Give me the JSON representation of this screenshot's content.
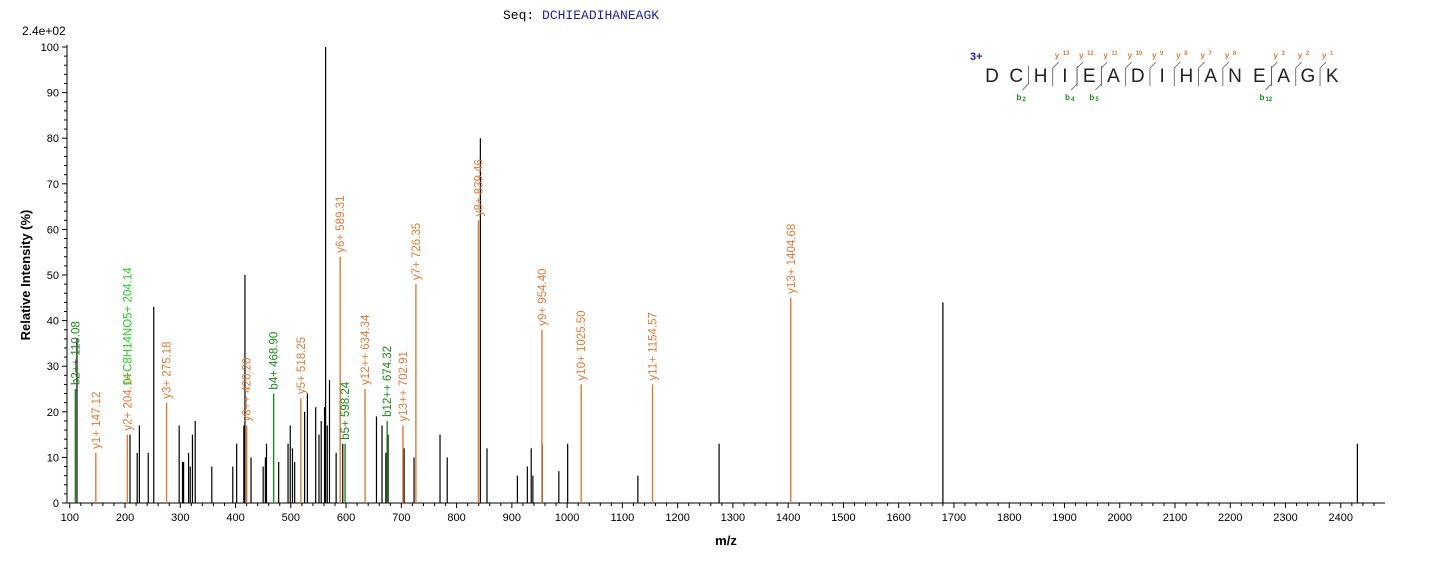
{
  "chart_data": {
    "type": "bar",
    "sequence_label": "Seq:",
    "sequence": "DCHIEADIHANEAGK",
    "charge_label": "3+",
    "scale_note": "2.4e+02",
    "xlabel": "m/z",
    "ylabel": "Relative   Intensity (%)",
    "xlim": [
      95,
      2480
    ],
    "ylim": [
      0,
      100
    ],
    "xticks": [
      100,
      200,
      300,
      400,
      500,
      600,
      700,
      800,
      900,
      1000,
      1100,
      1200,
      1300,
      1400,
      1500,
      1600,
      1700,
      1800,
      1900,
      2000,
      2100,
      2200,
      2300,
      2400
    ],
    "yticks": [
      0,
      10,
      20,
      30,
      40,
      50,
      60,
      70,
      80,
      90,
      100
    ],
    "colors": {
      "unmatched": "#000000",
      "y_ion": "#e07b39",
      "b_ion": "#1a8a1a",
      "b_label_bright": "#22cc22",
      "sequence": "#1f1fa0",
      "charge": "#1f1fa0"
    },
    "peaks": [
      {
        "mz": 113,
        "i": 36
      },
      {
        "mz": 209,
        "i": 15
      },
      {
        "mz": 222,
        "i": 11
      },
      {
        "mz": 226,
        "i": 17
      },
      {
        "mz": 242,
        "i": 11
      },
      {
        "mz": 252,
        "i": 43
      },
      {
        "mz": 298,
        "i": 17
      },
      {
        "mz": 304,
        "i": 9
      },
      {
        "mz": 306,
        "i": 9
      },
      {
        "mz": 315,
        "i": 11
      },
      {
        "mz": 318,
        "i": 8
      },
      {
        "mz": 322,
        "i": 15
      },
      {
        "mz": 327,
        "i": 18
      },
      {
        "mz": 357,
        "i": 8
      },
      {
        "mz": 395,
        "i": 8
      },
      {
        "mz": 402,
        "i": 13
      },
      {
        "mz": 415,
        "i": 17
      },
      {
        "mz": 417,
        "i": 50
      },
      {
        "mz": 428,
        "i": 10
      },
      {
        "mz": 450,
        "i": 8
      },
      {
        "mz": 454,
        "i": 10
      },
      {
        "mz": 456,
        "i": 13
      },
      {
        "mz": 478,
        "i": 9
      },
      {
        "mz": 495,
        "i": 13
      },
      {
        "mz": 499,
        "i": 17
      },
      {
        "mz": 503,
        "i": 12
      },
      {
        "mz": 507,
        "i": 9
      },
      {
        "mz": 525,
        "i": 20
      },
      {
        "mz": 530,
        "i": 24
      },
      {
        "mz": 545,
        "i": 21
      },
      {
        "mz": 551,
        "i": 15
      },
      {
        "mz": 555,
        "i": 18
      },
      {
        "mz": 561,
        "i": 21
      },
      {
        "mz": 563,
        "i": 100
      },
      {
        "mz": 566,
        "i": 17
      },
      {
        "mz": 570,
        "i": 27
      },
      {
        "mz": 582,
        "i": 11
      },
      {
        "mz": 594,
        "i": 13
      },
      {
        "mz": 655,
        "i": 19
      },
      {
        "mz": 665,
        "i": 17
      },
      {
        "mz": 672,
        "i": 11
      },
      {
        "mz": 676,
        "i": 15
      },
      {
        "mz": 705,
        "i": 12
      },
      {
        "mz": 723,
        "i": 10
      },
      {
        "mz": 770,
        "i": 15
      },
      {
        "mz": 783,
        "i": 10
      },
      {
        "mz": 843,
        "i": 80
      },
      {
        "mz": 855,
        "i": 12
      },
      {
        "mz": 910,
        "i": 6
      },
      {
        "mz": 928,
        "i": 8
      },
      {
        "mz": 935,
        "i": 12
      },
      {
        "mz": 938,
        "i": 6
      },
      {
        "mz": 955,
        "i": 13
      },
      {
        "mz": 985,
        "i": 7
      },
      {
        "mz": 1001,
        "i": 13
      },
      {
        "mz": 1128,
        "i": 6
      },
      {
        "mz": 1275,
        "i": 13
      },
      {
        "mz": 1680,
        "i": 44
      },
      {
        "mz": 2430,
        "i": 13
      }
    ],
    "annotated": [
      {
        "mz": 110.08,
        "i": 25,
        "label": "b2++ 110.08",
        "ion": "b"
      },
      {
        "mz": 147.12,
        "i": 11,
        "label": "y1+ 147.12",
        "ion": "y"
      },
      {
        "mz": 204.14,
        "i": 15,
        "label": "y2+ 204.14",
        "ion": "y"
      },
      {
        "mz": 204.14,
        "i": 25,
        "label": "0+C8H14NO5+ 204.14",
        "ion": "b_bright"
      },
      {
        "mz": 275.18,
        "i": 22,
        "label": "y3+ 275.18",
        "ion": "y"
      },
      {
        "mz": 420.2,
        "i": 17,
        "label": "y8++ 420.20",
        "ion": "y"
      },
      {
        "mz": 468.9,
        "i": 24,
        "label": "b4+ 468.90",
        "ion": "b"
      },
      {
        "mz": 518.25,
        "i": 23,
        "label": "y5+ 518.25",
        "ion": "y"
      },
      {
        "mz": 589.31,
        "i": 54,
        "label": "y6+ 589.31",
        "ion": "y"
      },
      {
        "mz": 598.24,
        "i": 13,
        "label": "b5+ 598.24",
        "ion": "b"
      },
      {
        "mz": 634.34,
        "i": 25,
        "label": "y12++ 634.34",
        "ion": "y"
      },
      {
        "mz": 674.32,
        "i": 18,
        "label": "b12++ 674.32",
        "ion": "b"
      },
      {
        "mz": 702.91,
        "i": 17,
        "label": "y13++ 702.91",
        "ion": "y"
      },
      {
        "mz": 726.35,
        "i": 48,
        "label": "y7+ 726.35",
        "ion": "y"
      },
      {
        "mz": 839.46,
        "i": 62,
        "label": "y8+ 839.46",
        "ion": "y"
      },
      {
        "mz": 954.4,
        "i": 38,
        "label": "y9+ 954.40",
        "ion": "y"
      },
      {
        "mz": 1025.5,
        "i": 26,
        "label": "y10+ 1025.50",
        "ion": "y"
      },
      {
        "mz": 1154.57,
        "i": 26,
        "label": "y11+ 1154.57",
        "ion": "y"
      },
      {
        "mz": 1404.68,
        "i": 45,
        "label": "y13+ 1404.68",
        "ion": "y"
      }
    ],
    "b_fragments": [
      {
        "after": 2,
        "label": "b",
        "sub": "2"
      },
      {
        "after": 4,
        "label": "b",
        "sub": "4"
      },
      {
        "after": 5,
        "label": "b",
        "sub": "5"
      },
      {
        "after": 12,
        "label": "b",
        "sub": "12"
      }
    ],
    "y_fragments": [
      {
        "before": 3,
        "label": "y",
        "sup": "13"
      },
      {
        "before": 4,
        "label": "y",
        "sup": "12"
      },
      {
        "before": 5,
        "label": "y",
        "sup": "11"
      },
      {
        "before": 6,
        "label": "y",
        "sup": "10"
      },
      {
        "before": 7,
        "label": "y",
        "sup": "9"
      },
      {
        "before": 8,
        "label": "y",
        "sup": "8"
      },
      {
        "before": 9,
        "label": "y",
        "sup": "7"
      },
      {
        "before": 10,
        "label": "y",
        "sup": "6"
      },
      {
        "before": 12,
        "label": "y",
        "sup": "3"
      },
      {
        "before": 13,
        "label": "y",
        "sup": "2"
      },
      {
        "before": 14,
        "label": "y",
        "sup": "1"
      }
    ]
  }
}
